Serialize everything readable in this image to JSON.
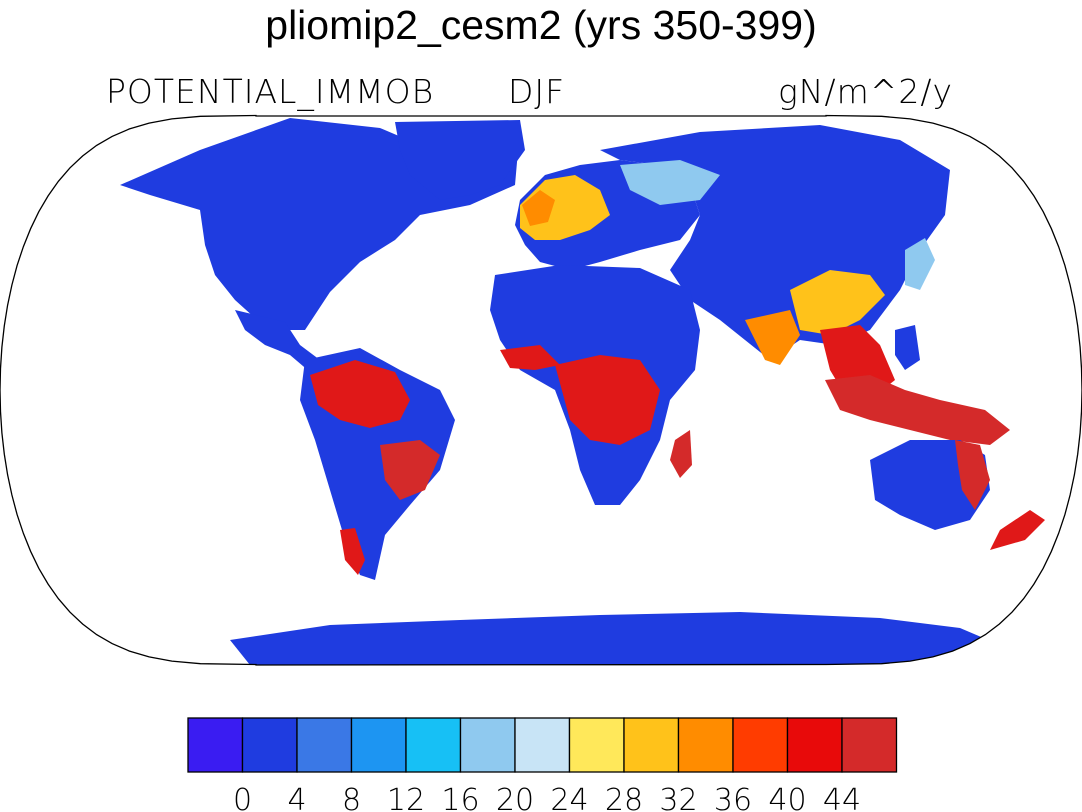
{
  "header": {
    "title": "pliomip2_cesm2 (yrs 350-399)",
    "variable": "POTENTIAL_IMMOB",
    "season": "DJF",
    "units": "gN/m^2/y"
  },
  "map": {
    "projection": "robinson",
    "background": "#ffffff",
    "land_colormap_note": "",
    "colors": {
      "low": "#1f3ce0",
      "mid_blue": "#3a78e6",
      "light_blue": "#8fc9ef",
      "yellow": "#ffe14d",
      "orange": "#ff8c00",
      "red": "#e01818",
      "dark_red": "#d42a2a"
    }
  },
  "colorbar": {
    "colors": [
      "#3a1cf2",
      "#1f3ce0",
      "#3a78e6",
      "#1d95f2",
      "#17c0f5",
      "#8fc9ef",
      "#c8e4f6",
      "#ffe85a",
      "#ffc21a",
      "#ff8c00",
      "#ff3c00",
      "#e80a0a",
      "#d42a2a"
    ],
    "labels": [
      "0",
      "4",
      "8",
      "12",
      "16",
      "20",
      "24",
      "28",
      "32",
      "36",
      "40",
      "44"
    ]
  }
}
